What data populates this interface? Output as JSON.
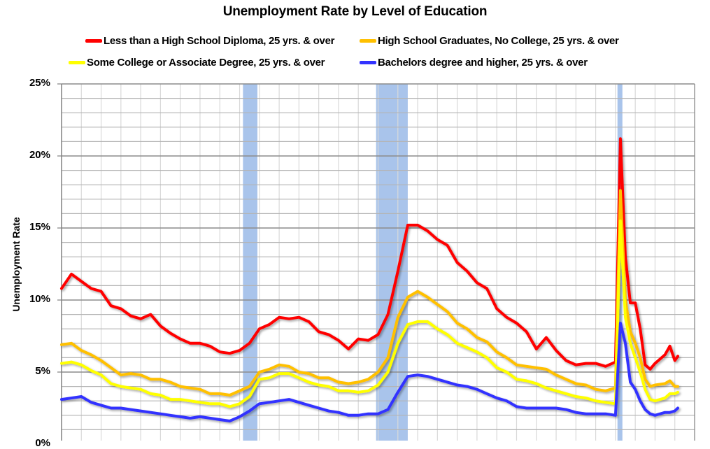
{
  "chart_data": {
    "type": "line",
    "title": "Unemployment Rate by Level of Education",
    "xlabel": "",
    "ylabel": "Unemployment Rate",
    "ylim": [
      0,
      25
    ],
    "xlim": [
      1992,
      2024
    ],
    "y_ticks": [
      "0%",
      "5%",
      "10%",
      "15%",
      "20%",
      "25%"
    ],
    "grid": {
      "major_y_step": 5,
      "minor_y_step": 1,
      "x_step_years": 1
    },
    "legend_position": "top",
    "recessions": [
      {
        "start": 2001.17,
        "end": 2001.9
      },
      {
        "start": 2007.9,
        "end": 2009.5
      },
      {
        "start": 2020.1,
        "end": 2020.35
      }
    ],
    "x": [
      1992.0,
      1992.5,
      1993.0,
      1993.5,
      1994.0,
      1994.5,
      1995.0,
      1995.5,
      1996.0,
      1996.5,
      1997.0,
      1997.5,
      1998.0,
      1998.5,
      1999.0,
      1999.5,
      2000.0,
      2000.5,
      2001.0,
      2001.5,
      2002.0,
      2002.5,
      2003.0,
      2003.5,
      2004.0,
      2004.5,
      2005.0,
      2005.5,
      2006.0,
      2006.5,
      2007.0,
      2007.5,
      2008.0,
      2008.5,
      2009.0,
      2009.5,
      2010.0,
      2010.5,
      2011.0,
      2011.5,
      2012.0,
      2012.5,
      2013.0,
      2013.5,
      2014.0,
      2014.5,
      2015.0,
      2015.5,
      2016.0,
      2016.5,
      2017.0,
      2017.5,
      2018.0,
      2018.5,
      2019.0,
      2019.5,
      2020.0,
      2020.25,
      2020.5,
      2020.75,
      2021.0,
      2021.25,
      2021.5,
      2021.75,
      2022.0,
      2022.5,
      2022.75,
      2023.0,
      2023.15
    ],
    "series": [
      {
        "name": "Less than a High School Diploma, 25 yrs. & over",
        "color": "#FF0000",
        "values": [
          10.8,
          11.8,
          11.3,
          10.8,
          10.6,
          9.6,
          9.4,
          8.9,
          8.7,
          9.0,
          8.2,
          7.7,
          7.3,
          7.0,
          7.0,
          6.8,
          6.4,
          6.3,
          6.5,
          7.0,
          8.0,
          8.3,
          8.8,
          8.7,
          8.8,
          8.5,
          7.8,
          7.6,
          7.2,
          6.6,
          7.3,
          7.2,
          7.6,
          9.0,
          12.0,
          15.2,
          15.2,
          14.8,
          14.2,
          13.8,
          12.6,
          12.0,
          11.2,
          10.8,
          9.4,
          8.8,
          8.4,
          7.8,
          6.6,
          7.4,
          6.5,
          5.8,
          5.5,
          5.6,
          5.6,
          5.4,
          5.7,
          21.2,
          13.0,
          9.8,
          9.8,
          8.0,
          5.5,
          5.2,
          5.6,
          6.2,
          6.8,
          5.8,
          6.1
        ]
      },
      {
        "name": "High School Graduates, No College, 25 yrs. & over",
        "color": "#FFC000",
        "values": [
          6.9,
          7.0,
          6.5,
          6.2,
          5.8,
          5.3,
          4.8,
          4.9,
          4.8,
          4.5,
          4.5,
          4.3,
          4.0,
          3.9,
          3.8,
          3.5,
          3.5,
          3.4,
          3.7,
          4.0,
          5.0,
          5.2,
          5.5,
          5.4,
          5.0,
          4.9,
          4.6,
          4.6,
          4.3,
          4.2,
          4.3,
          4.5,
          5.0,
          6.0,
          8.8,
          10.2,
          10.6,
          10.2,
          9.7,
          9.2,
          8.4,
          8.0,
          7.4,
          7.1,
          6.4,
          6.0,
          5.5,
          5.4,
          5.3,
          5.2,
          4.8,
          4.5,
          4.2,
          4.1,
          3.8,
          3.7,
          3.9,
          17.6,
          10.0,
          7.8,
          7.0,
          6.0,
          4.5,
          4.0,
          4.1,
          4.2,
          4.4,
          4.0,
          4.0
        ]
      },
      {
        "name": "Some College or Associate Degree, 25 yrs. & over",
        "color": "#FFFF00",
        "values": [
          5.6,
          5.7,
          5.5,
          5.1,
          4.8,
          4.2,
          4.0,
          3.9,
          3.8,
          3.5,
          3.4,
          3.1,
          3.1,
          3.0,
          2.9,
          2.8,
          2.8,
          2.6,
          2.8,
          3.3,
          4.5,
          4.6,
          4.9,
          4.9,
          4.6,
          4.3,
          4.1,
          4.0,
          3.7,
          3.7,
          3.6,
          3.7,
          4.1,
          5.0,
          7.0,
          8.3,
          8.5,
          8.5,
          8.0,
          7.6,
          7.0,
          6.7,
          6.4,
          6.0,
          5.3,
          5.0,
          4.5,
          4.4,
          4.2,
          3.9,
          3.7,
          3.5,
          3.3,
          3.2,
          3.0,
          2.9,
          2.8,
          15.5,
          8.8,
          7.0,
          6.0,
          5.0,
          3.8,
          3.1,
          3.0,
          3.2,
          3.5,
          3.5,
          3.6
        ]
      },
      {
        "name": "Bachelors degree and higher, 25 yrs. & over",
        "color": "#3333FF",
        "values": [
          3.1,
          3.2,
          3.3,
          2.9,
          2.7,
          2.5,
          2.5,
          2.4,
          2.3,
          2.2,
          2.1,
          2.0,
          1.9,
          1.8,
          1.9,
          1.8,
          1.7,
          1.6,
          1.9,
          2.3,
          2.8,
          2.9,
          3.0,
          3.1,
          2.9,
          2.7,
          2.5,
          2.3,
          2.2,
          2.0,
          2.0,
          2.1,
          2.1,
          2.4,
          3.6,
          4.7,
          4.8,
          4.7,
          4.5,
          4.3,
          4.1,
          4.0,
          3.8,
          3.5,
          3.2,
          3.0,
          2.6,
          2.5,
          2.5,
          2.5,
          2.5,
          2.4,
          2.2,
          2.1,
          2.1,
          2.1,
          2.0,
          8.4,
          7.0,
          4.3,
          3.8,
          3.0,
          2.4,
          2.1,
          2.0,
          2.2,
          2.2,
          2.3,
          2.5
        ]
      }
    ]
  },
  "legend": {
    "items": [
      {
        "label": "Less than a High School Diploma, 25 yrs. & over",
        "color": "#FF0000"
      },
      {
        "label": "High School Graduates, No College, 25 yrs. & over",
        "color": "#FFC000"
      },
      {
        "label": "Some College or Associate Degree, 25 yrs. & over",
        "color": "#FFFF00"
      },
      {
        "label": "Bachelors degree and higher, 25 yrs. & over",
        "color": "#3333FF"
      }
    ]
  },
  "colors": {
    "recession_band": "#A9C4EB",
    "major_grid": "#8C8C8C",
    "minor_grid": "#B4B4B4",
    "vertical_grid": "#D9D9D9",
    "axis": "#808080"
  }
}
